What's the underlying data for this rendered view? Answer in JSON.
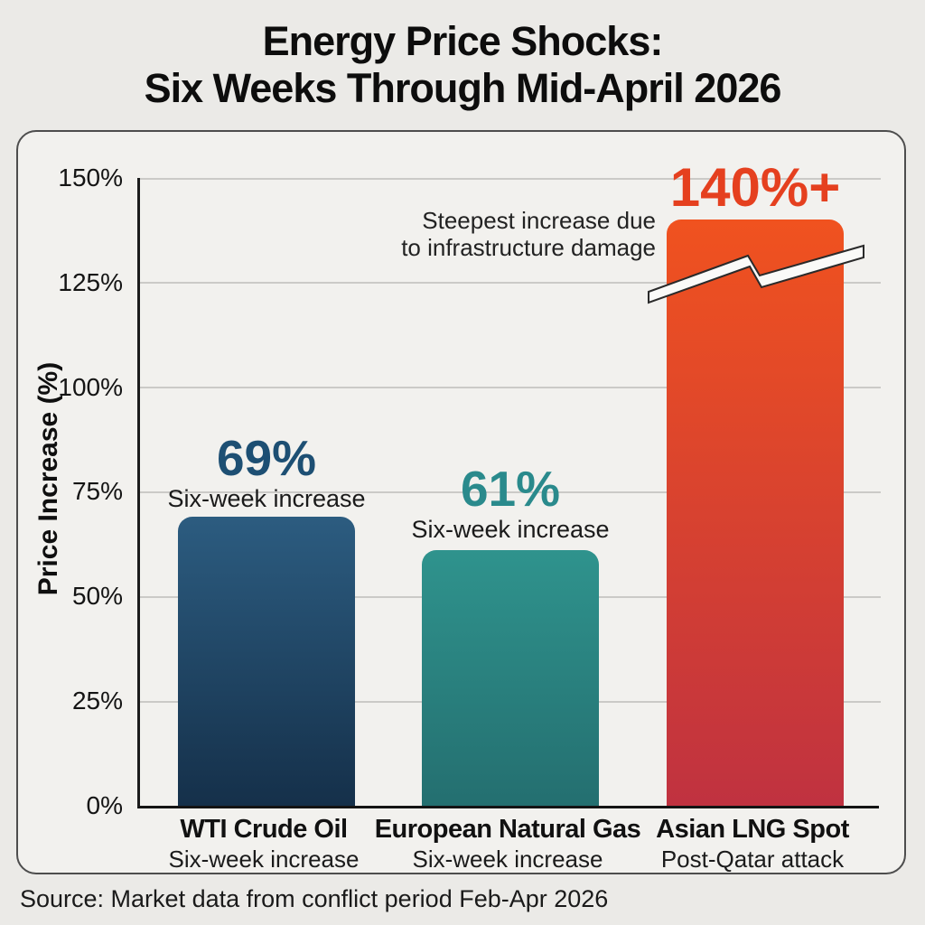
{
  "page": {
    "title_line1": "Energy Price Shocks:",
    "title_line2": "Six Weeks Through Mid-April 2026",
    "source": "Source: Market data from conflict period Feb-Apr 2026"
  },
  "y_axis": {
    "label": "Price Increase (%)",
    "ticks": [
      "150%",
      "125%",
      "100%",
      "75%",
      "50%",
      "25%",
      "0%"
    ]
  },
  "annotation": {
    "line1": "Steepest increase due",
    "line2": "to infrastructure damage"
  },
  "chart_data": {
    "type": "bar",
    "title": "Energy Price Shocks: Six Weeks Through Mid-April 2026",
    "ylabel": "Price Increase (%)",
    "ylim": [
      0,
      150
    ],
    "ytick_interval": 25,
    "grid": true,
    "legend": "none",
    "categories": [
      "WTI Crude Oil",
      "European Natural Gas",
      "Asian LNG Spot"
    ],
    "values": [
      69,
      61,
      140
    ],
    "bars": [
      {
        "category": "WTI Crude Oil",
        "category_sublabel": "Six-week increase",
        "value": 69,
        "value_label": "69%",
        "value_sublabel": "Six-week increase",
        "color_top": "#2c5c80",
        "color_bottom": "#15304a",
        "label_color": "#1d4f73"
      },
      {
        "category": "European Natural Gas",
        "category_sublabel": "Six-week increase",
        "value": 61,
        "value_label": "61%",
        "value_sublabel": "Six-week increase",
        "color_top": "#2f938d",
        "color_bottom": "#246f70",
        "label_color": "#2a8a8c"
      },
      {
        "category": "Asian LNG Spot",
        "category_sublabel": "Post-Qatar attack",
        "value": 140,
        "value_label": "140%+",
        "value_sublabel": "",
        "color_top": "#f0521f",
        "color_bottom": "#c03240",
        "label_color": "#e5401f",
        "axis_break": true,
        "note": "Steepest increase due to infrastructure damage"
      }
    ]
  }
}
